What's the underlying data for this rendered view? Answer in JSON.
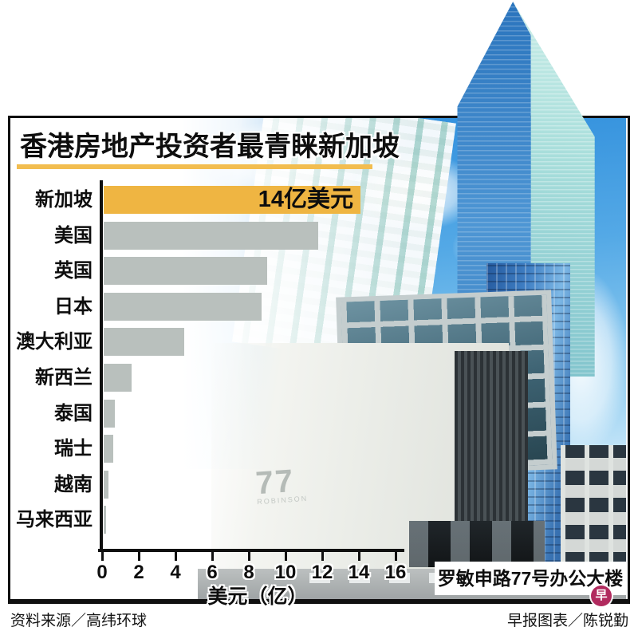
{
  "chart_data": {
    "type": "bar",
    "orientation": "horizontal",
    "title": "香港房地产投资者最青睐新加坡",
    "categories": [
      "新加坡",
      "美国",
      "英国",
      "日本",
      "澳大利亚",
      "新西兰",
      "泰国",
      "瑞士",
      "越南",
      "马来西亚"
    ],
    "values": [
      14,
      11.7,
      8.9,
      8.6,
      4.4,
      1.5,
      0.6,
      0.5,
      0.25,
      0.15
    ],
    "unit": "亿美元",
    "highlight_index": 0,
    "highlight_label": "14亿美元",
    "xlabel": "美元（亿）",
    "x_ticks": [
      0,
      2,
      4,
      6,
      8,
      10,
      12,
      14,
      16
    ],
    "xlim": [
      0,
      16.5
    ],
    "grid": false,
    "legend": false
  },
  "photo": {
    "caption": "罗敏申路77号办公大楼",
    "building_logo": "77",
    "building_logo_sub": "ROBINSON"
  },
  "footer": {
    "source": "资料来源／高纬环球",
    "credit": "早报图表／陈锐勤",
    "logo_char": "早"
  },
  "colors": {
    "accent_yellow": "#efb542",
    "underline_yellow": "#f2bd4f",
    "bar_gray": "#b9c0bd",
    "sky_blue": "#4a9fe0",
    "logo_red": "#b12a5e"
  }
}
